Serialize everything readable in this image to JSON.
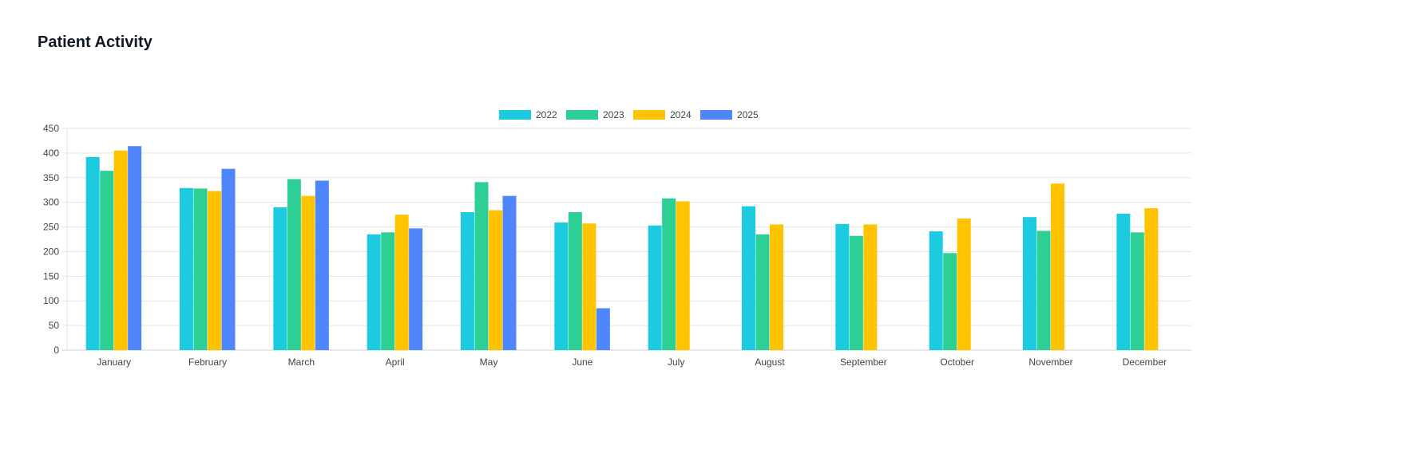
{
  "header": {
    "title": "Patient Activity"
  },
  "chart_data": {
    "type": "bar",
    "title": "",
    "xlabel": "",
    "ylabel": "",
    "ylim": [
      0,
      450
    ],
    "yticks": [
      0,
      50,
      100,
      150,
      200,
      250,
      300,
      350,
      400,
      450
    ],
    "grid": true,
    "legend_position": "top-center",
    "categories": [
      "January",
      "February",
      "March",
      "April",
      "May",
      "June",
      "July",
      "August",
      "September",
      "October",
      "November",
      "December"
    ],
    "series": [
      {
        "name": "2022",
        "color": "#1ccbe0",
        "values": [
          392,
          329,
          290,
          235,
          280,
          259,
          253,
          292,
          256,
          241,
          270,
          277
        ]
      },
      {
        "name": "2023",
        "color": "#2ecf94",
        "values": [
          364,
          328,
          347,
          239,
          341,
          280,
          308,
          235,
          232,
          197,
          242,
          239
        ]
      },
      {
        "name": "2024",
        "color": "#ffc300",
        "values": [
          405,
          323,
          313,
          275,
          284,
          257,
          302,
          255,
          255,
          267,
          338,
          288
        ]
      },
      {
        "name": "2025",
        "color": "#4f86fb",
        "values": [
          414,
          368,
          344,
          247,
          313,
          85,
          null,
          null,
          null,
          null,
          null,
          null
        ]
      }
    ]
  }
}
